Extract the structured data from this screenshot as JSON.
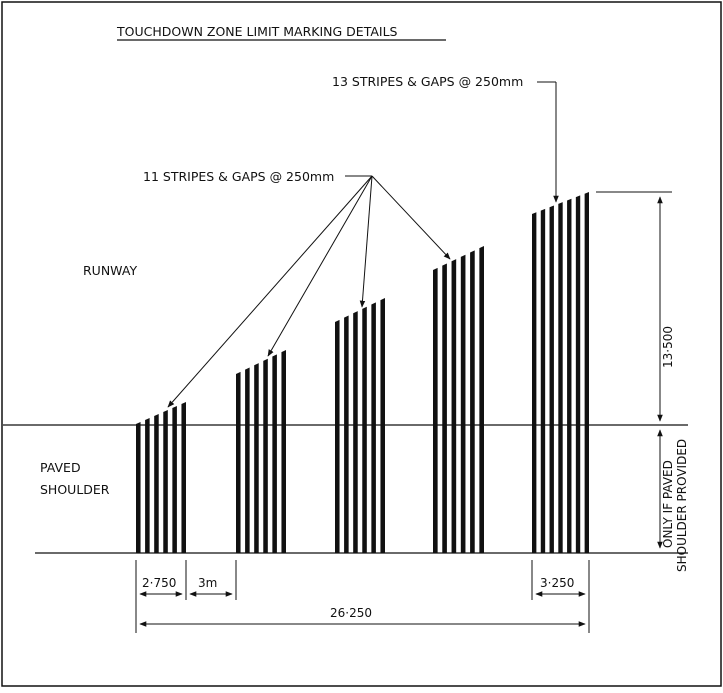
{
  "title": "TOUCHDOWN ZONE LIMIT MARKING DETAILS",
  "labels": {
    "runway": "RUNWAY",
    "paved_line1": "PAVED",
    "paved_line2": "SHOULDER",
    "callout_11": "11 STRIPES & GAPS @ 250mm",
    "callout_13": "13 STRIPES & GAPS @ 250mm"
  },
  "dimensions": {
    "stripe_group_width": "2·750",
    "gap_between_groups": "3m",
    "last_group_width": "3·250",
    "total_length": "26·250",
    "max_height": "13·500",
    "shoulder_note_line1": "ONLY IF PAVED",
    "shoulder_note_line2": "SHOULDER PROVIDED"
  },
  "stripe_groups": [
    {
      "stripes": 11
    },
    {
      "stripes": 11
    },
    {
      "stripes": 11
    },
    {
      "stripes": 11
    },
    {
      "stripes": 13
    }
  ]
}
